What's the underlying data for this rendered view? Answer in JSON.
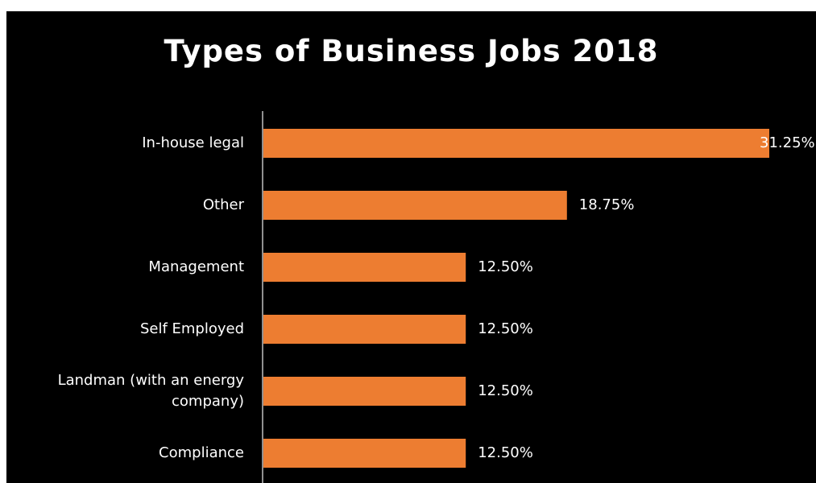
{
  "chart_data": {
    "type": "bar",
    "orientation": "horizontal",
    "title": "Types of Business Jobs 2018",
    "categories": [
      "In-house legal",
      "Other",
      "Management",
      "Self Employed",
      "Landman (with an energy company)",
      "Compliance"
    ],
    "values": [
      31.25,
      18.75,
      12.5,
      12.5,
      12.5,
      12.5
    ],
    "value_labels": [
      "31.25%",
      "18.75%",
      "12.50%",
      "12.50%",
      "12.50%",
      "12.50%"
    ],
    "xlim": [
      0,
      31.25
    ],
    "grid": false,
    "legend": "none",
    "colors": {
      "background": "#000000",
      "bar": "#ED7D31",
      "text": "#FFFFFF",
      "axis": "#BFBFBF"
    }
  }
}
